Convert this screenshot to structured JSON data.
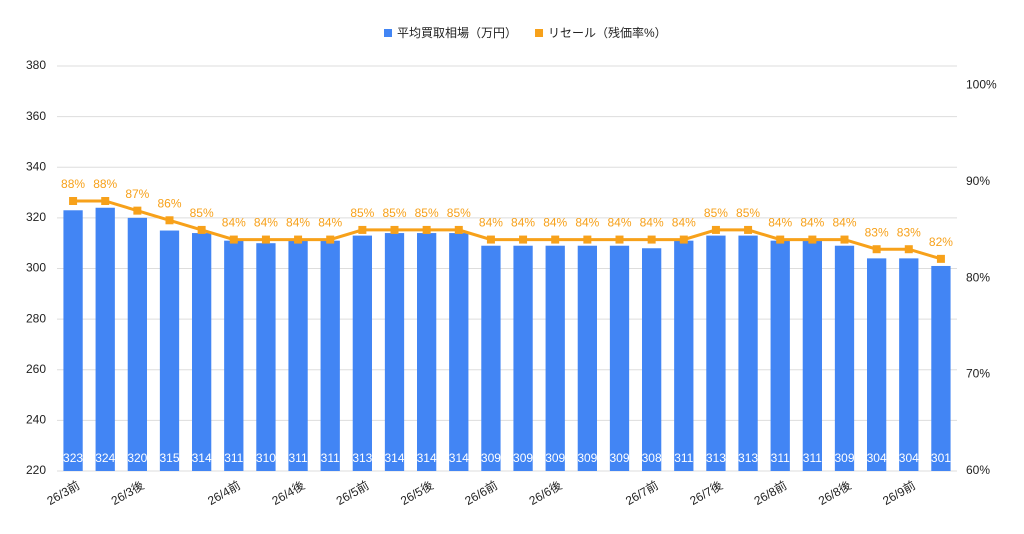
{
  "chart_data": {
    "type": "bar_line",
    "categories": [
      "26/3前",
      null,
      "26/3後",
      null,
      null,
      "26/4前",
      null,
      "26/4後",
      null,
      "26/5前",
      null,
      "26/5後",
      null,
      "26/6前",
      null,
      "26/6後",
      null,
      null,
      "26/7前",
      null,
      "26/7後",
      null,
      "26/8前",
      null,
      "26/8後",
      null,
      "26/9前",
      null
    ],
    "series": [
      {
        "name": "平均買取相場（万円）",
        "color": "#4285f4",
        "type": "bar",
        "values": [
          323,
          324,
          320,
          315,
          314,
          311,
          310,
          311,
          311,
          313,
          314,
          314,
          314,
          309,
          309,
          309,
          309,
          309,
          308,
          311,
          313,
          313,
          311,
          311,
          309,
          304,
          304,
          301
        ]
      },
      {
        "name": "リセール（残価率%）",
        "color": "#f7a11a",
        "type": "line",
        "axis": "y2",
        "values": [
          88,
          88,
          87,
          86,
          85,
          84,
          84,
          84,
          84,
          85,
          85,
          85,
          85,
          84,
          84,
          84,
          84,
          84,
          84,
          84,
          85,
          85,
          84,
          84,
          84,
          83,
          83,
          82
        ],
        "value_labels": [
          "88%",
          "88%",
          "87%",
          "86%",
          "85%",
          "84%",
          "84%",
          "84%",
          "84%",
          "85%",
          "85%",
          "85%",
          "85%",
          "84%",
          "84%",
          "84%",
          "84%",
          "84%",
          "84%",
          "84%",
          "85%",
          "85%",
          "84%",
          "84%",
          "84%",
          "83%",
          "83%",
          "82%"
        ]
      }
    ],
    "ylim": [
      220,
      380
    ],
    "yticks": [
      220,
      240,
      260,
      280,
      300,
      320,
      340,
      360,
      380
    ],
    "y2lim": [
      60,
      102
    ],
    "y2ticks": [
      {
        "value": 60,
        "label": "60%"
      },
      {
        "value": 70,
        "label": "70%"
      },
      {
        "value": 80,
        "label": "80%"
      },
      {
        "value": 90,
        "label": "90%"
      },
      {
        "value": 100,
        "label": "100%"
      }
    ],
    "grid": true,
    "legend": "top"
  }
}
